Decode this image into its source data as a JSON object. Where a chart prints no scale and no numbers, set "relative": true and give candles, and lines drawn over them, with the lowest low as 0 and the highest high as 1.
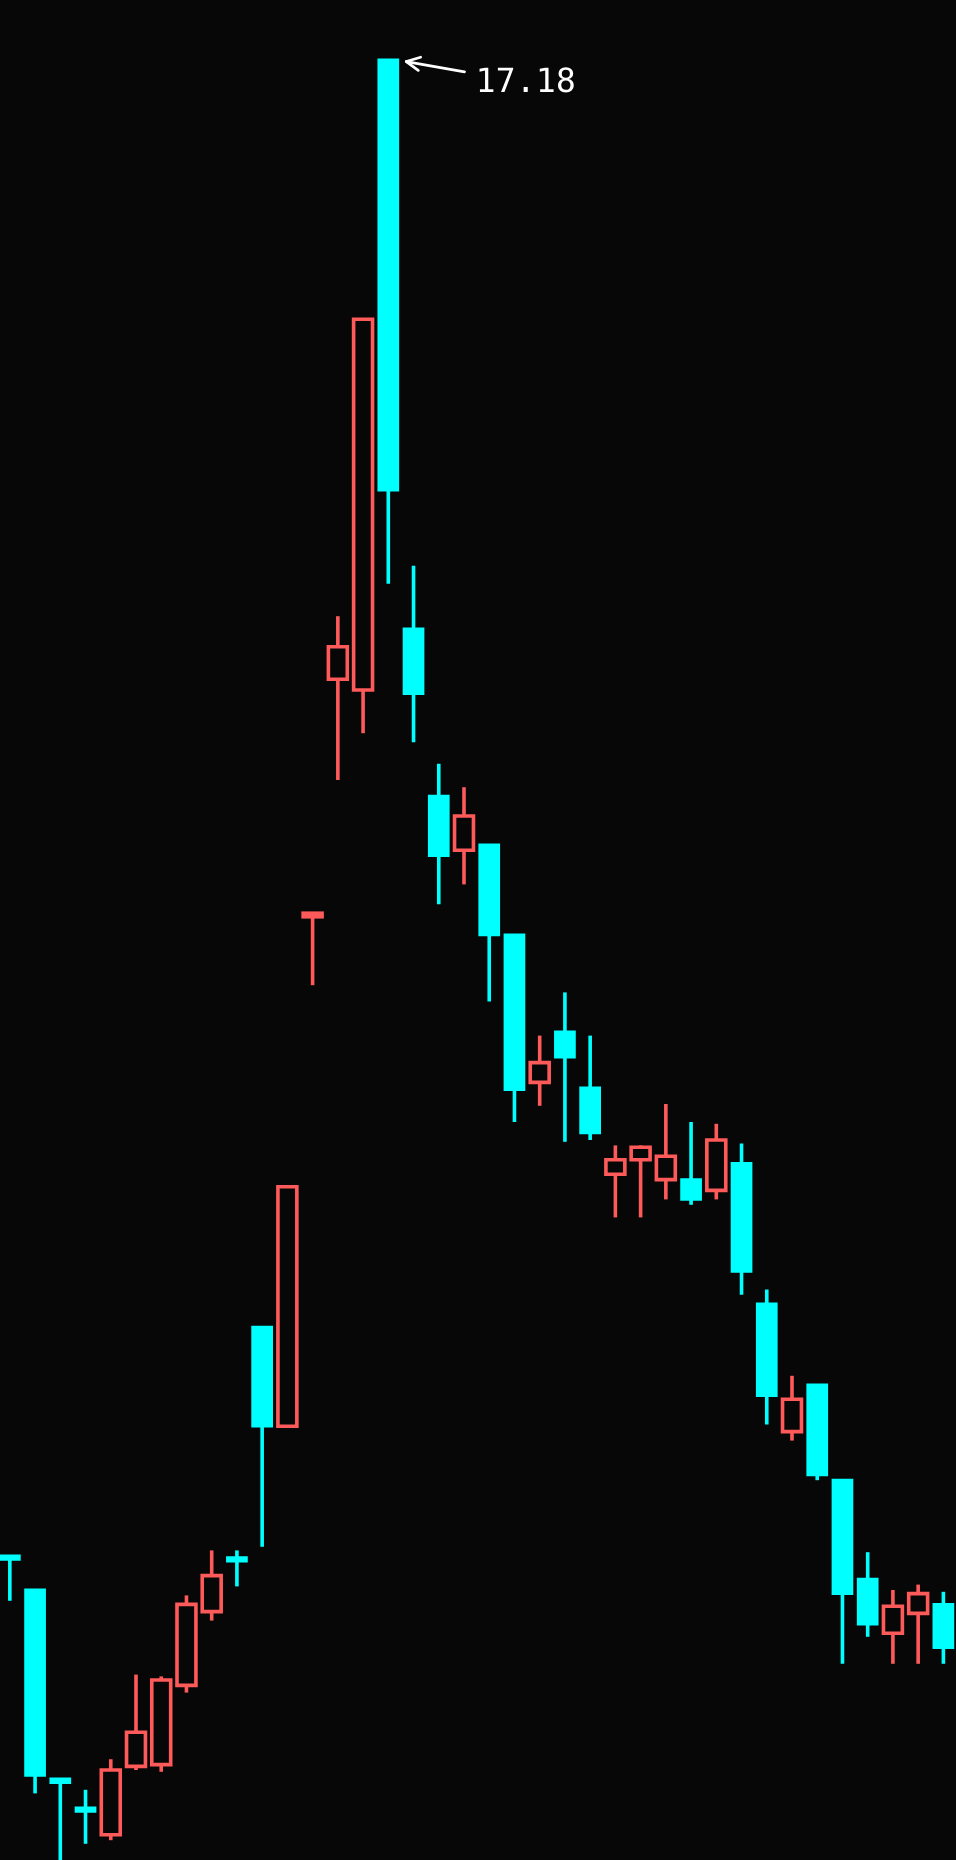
{
  "chart_data": {
    "type": "candlestick",
    "relative": true,
    "categories": [
      null,
      null,
      null,
      null,
      null,
      null,
      null,
      null,
      null,
      null,
      null,
      null,
      null,
      null,
      null,
      null,
      null,
      null,
      null,
      null,
      null,
      null,
      null,
      null,
      null,
      null,
      null,
      null,
      null,
      null,
      null,
      null,
      null,
      null,
      null,
      null,
      null,
      null
    ],
    "ohlc": [
      [
        0.169,
        0.169,
        0.144,
        0.167
      ],
      [
        0.15,
        0.15,
        0.037,
        0.047
      ],
      [
        0.044,
        0.044,
        0.0,
        0.043
      ],
      [
        0.029,
        0.039,
        0.009,
        0.027
      ],
      [
        0.014,
        0.056,
        0.011,
        0.05
      ],
      [
        0.052,
        0.103,
        0.05,
        0.071
      ],
      [
        0.053,
        0.102,
        0.049,
        0.1
      ],
      [
        0.097,
        0.147,
        0.093,
        0.142
      ],
      [
        0.138,
        0.172,
        0.133,
        0.158
      ],
      [
        0.168,
        0.172,
        0.152,
        0.166
      ],
      [
        0.296,
        0.296,
        0.174,
        0.241
      ],
      [
        0.241,
        0.374,
        0.241,
        0.374
      ],
      [
        0.524,
        0.526,
        0.486,
        0.526
      ],
      [
        0.656,
        0.691,
        0.6,
        0.674
      ],
      [
        0.65,
        0.856,
        0.626,
        0.856
      ],
      [
        1.0,
        1.0,
        0.709,
        0.761
      ],
      [
        0.684,
        0.719,
        0.621,
        0.648
      ],
      [
        0.591,
        0.609,
        0.531,
        0.558
      ],
      [
        0.561,
        0.596,
        0.542,
        0.58
      ],
      [
        0.564,
        0.564,
        0.477,
        0.514
      ],
      [
        0.514,
        0.514,
        0.41,
        0.428
      ],
      [
        0.432,
        0.458,
        0.419,
        0.443
      ],
      [
        0.46,
        0.482,
        0.399,
        0.446
      ],
      [
        0.429,
        0.458,
        0.4,
        0.404
      ],
      [
        0.381,
        0.397,
        0.357,
        0.389
      ],
      [
        0.389,
        0.397,
        0.357,
        0.396
      ],
      [
        0.378,
        0.42,
        0.367,
        0.391
      ],
      [
        0.378,
        0.41,
        0.364,
        0.367
      ],
      [
        0.372,
        0.409,
        0.367,
        0.4
      ],
      [
        0.387,
        0.398,
        0.314,
        0.327
      ],
      [
        0.309,
        0.317,
        0.242,
        0.258
      ],
      [
        0.238,
        0.269,
        0.233,
        0.256
      ],
      [
        0.264,
        0.264,
        0.211,
        0.214
      ],
      [
        0.211,
        0.211,
        0.109,
        0.148
      ],
      [
        0.156,
        0.171,
        0.124,
        0.131
      ],
      [
        0.126,
        0.15,
        0.109,
        0.141
      ],
      [
        0.137,
        0.153,
        0.109,
        0.148
      ],
      [
        0.142,
        0.149,
        0.109,
        0.118
      ]
    ],
    "colors": [
      "#00ffff",
      "#00ffff",
      "#00ffff",
      "#00ffff",
      "#ff5a5a",
      "#ff5a5a",
      "#ff5a5a",
      "#ff5a5a",
      "#ff5a5a",
      "#00ffff",
      "#00ffff",
      "#ff5a5a",
      "#ff5a5a",
      "#ff5a5a",
      "#ff5a5a",
      "#00ffff",
      "#00ffff",
      "#00ffff",
      "#ff5a5a",
      "#00ffff",
      "#00ffff",
      "#ff5a5a",
      "#00ffff",
      "#00ffff",
      "#ff5a5a",
      "#ff5a5a",
      "#ff5a5a",
      "#00ffff",
      "#ff5a5a",
      "#00ffff",
      "#00ffff",
      "#ff5a5a",
      "#00ffff",
      "#00ffff",
      "#00ffff",
      "#ff5a5a",
      "#ff5a5a",
      "#00ffff"
    ],
    "annotations": [
      "17.18"
    ]
  }
}
